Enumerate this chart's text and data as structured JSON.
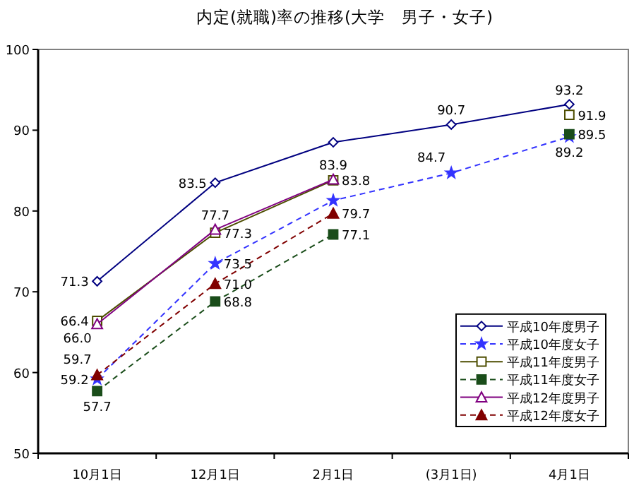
{
  "chart_data": {
    "type": "line",
    "title": "内定(就職)率の推移(大学　男子・女子)",
    "categories": [
      "10月1日",
      "12月1日",
      "2月1日",
      "(3月1日)",
      "4月1日"
    ],
    "ylim": [
      50,
      100
    ],
    "yticks": [
      50,
      60,
      70,
      80,
      90,
      100
    ],
    "grid": false,
    "legend": "bottom right",
    "series": [
      {
        "name": "平成10年度男子",
        "color": "#000080",
        "marker": "diamond",
        "line_style": "solid",
        "values": [
          71.3,
          83.5,
          88.5,
          90.7,
          93.2
        ],
        "value_labels": [
          "71.3",
          "83.5",
          null,
          "90.7",
          "93.2"
        ]
      },
      {
        "name": "平成10年度女子",
        "color": "#3333ff",
        "marker": "star",
        "line_style": "dashed",
        "values": [
          59.2,
          73.5,
          81.3,
          84.7,
          89.2
        ],
        "value_labels": [
          "59.2",
          "73.5",
          null,
          "84.7",
          "89.2"
        ]
      },
      {
        "name": "平成11年度男子",
        "color": "#4d4d00",
        "marker": "square",
        "line_style": "solid",
        "values": [
          66.4,
          77.3,
          83.8,
          null,
          91.9
        ],
        "value_labels": [
          "66.4",
          "77.3",
          "83.8",
          null,
          "91.9"
        ]
      },
      {
        "name": "平成11年度女子",
        "color": "#1a4d1a",
        "marker": "square",
        "line_style": "dashed",
        "values": [
          57.7,
          68.8,
          77.1,
          null,
          89.5
        ],
        "value_labels": [
          "57.7",
          "68.8",
          "77.1",
          null,
          "89.5"
        ]
      },
      {
        "name": "平成12年度男子",
        "color": "#800080",
        "marker": "triangle",
        "line_style": "solid",
        "values": [
          66.0,
          77.7,
          83.9,
          null,
          null
        ],
        "value_labels": [
          "66.0",
          "77.7",
          "83.9",
          null,
          null
        ]
      },
      {
        "name": "平成12年度女子",
        "color": "#800000",
        "marker": "triangle",
        "line_style": "dashed",
        "values": [
          59.7,
          71.0,
          79.7,
          null,
          null
        ],
        "value_labels": [
          "59.7",
          "71.0",
          "79.7",
          null,
          null
        ]
      }
    ]
  }
}
